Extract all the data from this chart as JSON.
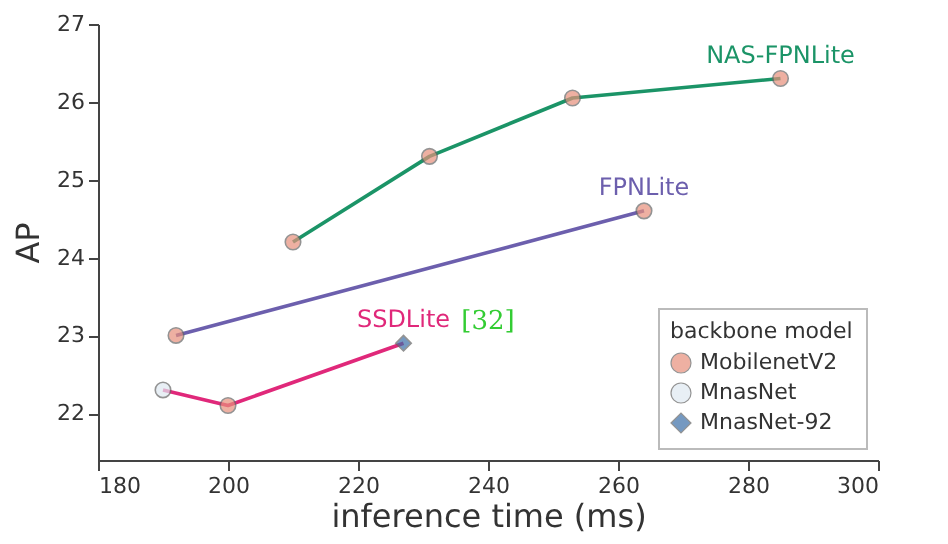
{
  "chart_data": {
    "type": "line",
    "xlabel": "inference time (ms)",
    "ylabel": "AP",
    "legend_title": "backbone model",
    "xlim": [
      180,
      300
    ],
    "xticks": [
      180,
      200,
      220,
      240,
      260,
      280,
      300
    ],
    "ylim": [
      21.4,
      27
    ],
    "yticks": [
      22,
      23,
      24,
      25,
      26,
      27
    ],
    "grid": false,
    "legend": "bottom right",
    "line_style": "solid",
    "annotations": [
      "[32]"
    ],
    "series": [
      {
        "name": "NAS-FPNLite",
        "color": "#1b9467",
        "marker": "none",
        "x": [
          210,
          231,
          253,
          285
        ],
        "values": [
          24.2,
          25.3,
          26.05,
          26.3
        ]
      },
      {
        "name": "FPNLite",
        "color": "#6c5fad",
        "marker": "none",
        "x": [
          192,
          264
        ],
        "values": [
          23.0,
          24.6
        ]
      },
      {
        "name": "SSDLite",
        "color": "#e0287a",
        "marker": "none",
        "x": [
          190,
          200,
          227
        ],
        "values": [
          22.3,
          22.1,
          22.9
        ]
      },
      {
        "name": "MobilenetV2",
        "type": "scatter",
        "color": "#e8907c",
        "marker": "circle",
        "x": [
          210,
          231,
          253,
          285,
          192,
          264,
          200
        ],
        "values": [
          24.2,
          25.3,
          26.05,
          26.3,
          23.0,
          24.6,
          22.1
        ]
      },
      {
        "name": "MnasNet",
        "type": "scatter",
        "color": "#dfe9f2",
        "marker": "circle",
        "x": [
          190
        ],
        "values": [
          22.3
        ]
      },
      {
        "name": "MnasNet-92",
        "type": "scatter",
        "color": "#3b6fa8",
        "marker": "diamond",
        "x": [
          227
        ],
        "values": [
          22.9
        ]
      }
    ]
  }
}
